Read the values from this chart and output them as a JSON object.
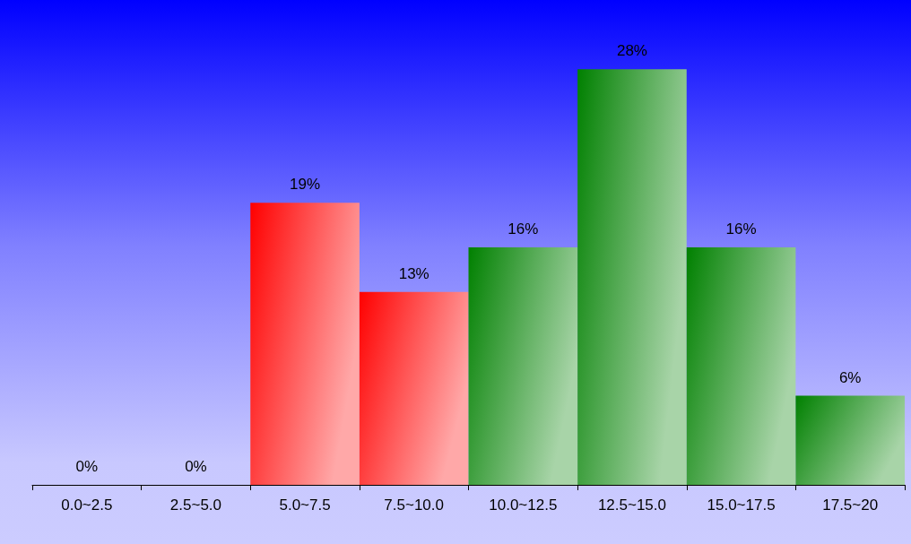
{
  "chart_data": {
    "type": "bar",
    "categories": [
      "0.0~2.5",
      "2.5~5.0",
      "5.0~7.5",
      "7.5~10.0",
      "10.0~12.5",
      "12.5~15.0",
      "15.0~17.5",
      "17.5~20"
    ],
    "values": [
      0,
      0,
      19,
      13,
      16,
      28,
      16,
      6
    ],
    "value_labels": [
      "0%",
      "0%",
      "19%",
      "13%",
      "16%",
      "28%",
      "16%",
      "6%"
    ],
    "colors": [
      "#008000",
      "#008000",
      "#ff0000",
      "#ff0000",
      "#008000",
      "#008000",
      "#008000",
      "#008000"
    ]
  }
}
